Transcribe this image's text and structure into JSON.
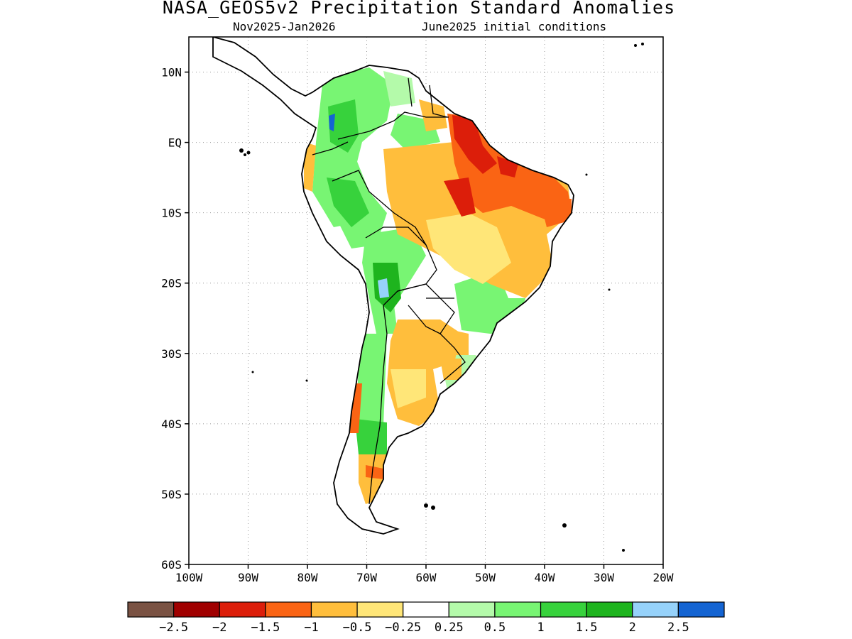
{
  "title": "NASA_GEOS5v2 Precipitation Standard Anomalies",
  "subtitle_left": "Nov2025-Jan2026",
  "subtitle_right": "June2025 initial conditions",
  "map": {
    "lon_range": [
      -100,
      -20
    ],
    "lat_range": [
      -60,
      15
    ],
    "grid": true,
    "lat_ticks": [
      {
        "value": 10,
        "label": "10N"
      },
      {
        "value": 0,
        "label": "EQ"
      },
      {
        "value": -10,
        "label": "10S"
      },
      {
        "value": -20,
        "label": "20S"
      },
      {
        "value": -30,
        "label": "30S"
      },
      {
        "value": -40,
        "label": "40S"
      },
      {
        "value": -50,
        "label": "50S"
      },
      {
        "value": -60,
        "label": "60S"
      }
    ],
    "lon_ticks": [
      {
        "value": -100,
        "label": "100W"
      },
      {
        "value": -90,
        "label": "90W"
      },
      {
        "value": -80,
        "label": "80W"
      },
      {
        "value": -70,
        "label": "70W"
      },
      {
        "value": -60,
        "label": "60W"
      },
      {
        "value": -50,
        "label": "50W"
      },
      {
        "value": -40,
        "label": "40W"
      },
      {
        "value": -30,
        "label": "30W"
      },
      {
        "value": -20,
        "label": "20W"
      }
    ]
  },
  "colorbar": {
    "colors": [
      "#7a5243",
      "#a00000",
      "#dc1e0a",
      "#fa6414",
      "#ffbe3c",
      "#ffe678",
      "#ffffff",
      "#b4faaa",
      "#78f573",
      "#37d23c",
      "#1eb41e",
      "#96d2fa",
      "#1464d2"
    ],
    "labels": [
      "-2.5",
      "-2",
      "-1.5",
      "-1",
      "-0.5",
      "-0.25",
      "0.25",
      "0.5",
      "1",
      "1.5",
      "2",
      "2.5"
    ]
  },
  "colors": {
    "strong_dry": "#dc1e0a",
    "very_strong_dry": "#a00000",
    "dry": "#fa6414",
    "moderate_dry": "#ffbe3c",
    "light_dry": "#ffe678",
    "light_wet": "#b4faaa",
    "wet": "#78f573",
    "moderate_wet": "#37d23c",
    "strong_wet": "#1eb41e",
    "very_strong_wet": "#96d2fa",
    "extreme_wet": "#1464d2"
  }
}
